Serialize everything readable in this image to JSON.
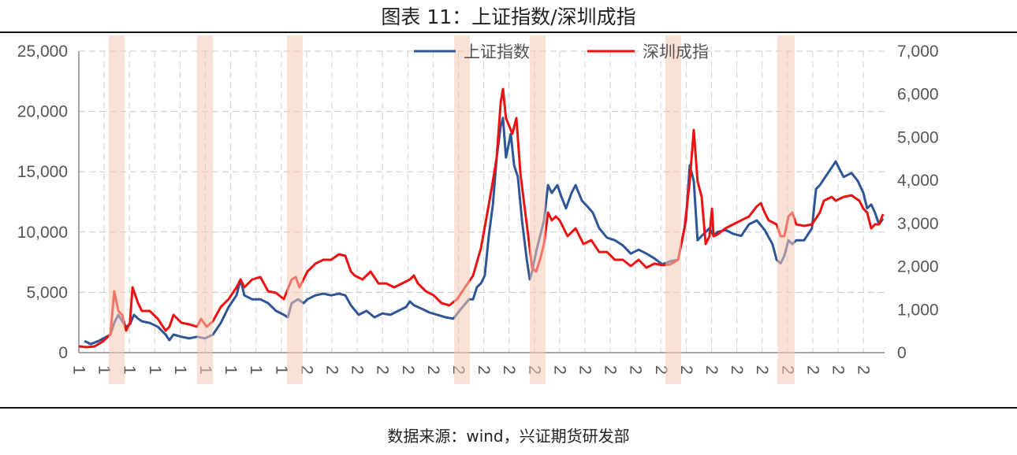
{
  "title": "图表 11：上证指数/深圳成指",
  "source": "数据来源：wind，兴证期货研发部",
  "chart_data": {
    "type": "line",
    "title": "图表 11：上证指数/深圳成指",
    "x_tick_labels": [
      "1",
      "1",
      "1",
      "1",
      "1",
      "1",
      "1",
      "1",
      "1",
      "2",
      "2",
      "2",
      "2",
      "2",
      "2",
      "2",
      "2",
      "2",
      "2",
      "2",
      "2",
      "2",
      "2",
      "2",
      "2",
      "2",
      "2",
      "2",
      "2",
      "2",
      "2",
      "2"
    ],
    "y_left": {
      "ticks": [
        "0",
        "5,000",
        "10,000",
        "15,000",
        "20,000",
        "25,000"
      ],
      "lim": [
        0,
        25000
      ]
    },
    "y_right": {
      "ticks": [
        "0",
        "1,000",
        "2,000",
        "3,000",
        "4,000",
        "5,000",
        "6,000",
        "7,000"
      ],
      "lim": [
        0,
        7000
      ]
    },
    "grid": "dashed",
    "legend": "top-center",
    "shaded_periods": [
      [
        1.18,
        1.81
      ],
      [
        4.67,
        5.3
      ],
      [
        8.22,
        8.85
      ],
      [
        14.83,
        15.45
      ],
      [
        17.82,
        18.44
      ],
      [
        23.18,
        23.8
      ],
      [
        27.6,
        28.29
      ]
    ],
    "shade_color": "#f6c9b3",
    "series": [
      {
        "name": "上证指数",
        "axis": "right",
        "color": "#2f5597",
        "points": [
          [
            0.22,
            270
          ],
          [
            0.47,
            200
          ],
          [
            0.78,
            270
          ],
          [
            1.09,
            370
          ],
          [
            1.25,
            420
          ],
          [
            1.4,
            690
          ],
          [
            1.56,
            880
          ],
          [
            1.71,
            730
          ],
          [
            1.87,
            600
          ],
          [
            2.02,
            660
          ],
          [
            2.18,
            880
          ],
          [
            2.34,
            790
          ],
          [
            2.49,
            730
          ],
          [
            2.8,
            690
          ],
          [
            3.12,
            600
          ],
          [
            3.43,
            420
          ],
          [
            3.58,
            290
          ],
          [
            3.74,
            420
          ],
          [
            4.05,
            370
          ],
          [
            4.36,
            330
          ],
          [
            4.67,
            370
          ],
          [
            4.98,
            330
          ],
          [
            5.3,
            420
          ],
          [
            5.61,
            690
          ],
          [
            5.92,
            1060
          ],
          [
            6.23,
            1330
          ],
          [
            6.39,
            1700
          ],
          [
            6.54,
            1330
          ],
          [
            6.85,
            1240
          ],
          [
            7.17,
            1240
          ],
          [
            7.48,
            1150
          ],
          [
            7.79,
            970
          ],
          [
            8.1,
            880
          ],
          [
            8.26,
            820
          ],
          [
            8.41,
            1150
          ],
          [
            8.66,
            1240
          ],
          [
            8.88,
            1150
          ],
          [
            9.03,
            1240
          ],
          [
            9.35,
            1330
          ],
          [
            9.66,
            1370
          ],
          [
            9.97,
            1330
          ],
          [
            10.28,
            1370
          ],
          [
            10.53,
            1330
          ],
          [
            10.75,
            1100
          ],
          [
            11.06,
            880
          ],
          [
            11.37,
            970
          ],
          [
            11.68,
            820
          ],
          [
            11.99,
            910
          ],
          [
            12.31,
            880
          ],
          [
            12.62,
            970
          ],
          [
            12.93,
            1060
          ],
          [
            13.08,
            1190
          ],
          [
            13.24,
            1100
          ],
          [
            13.55,
            1020
          ],
          [
            13.86,
            930
          ],
          [
            14.17,
            880
          ],
          [
            14.49,
            820
          ],
          [
            14.8,
            790
          ],
          [
            15.11,
            1020
          ],
          [
            15.42,
            1240
          ],
          [
            15.58,
            1240
          ],
          [
            15.73,
            1520
          ],
          [
            15.89,
            1610
          ],
          [
            16.04,
            1790
          ],
          [
            16.2,
            2710
          ],
          [
            16.36,
            3440
          ],
          [
            16.51,
            4530
          ],
          [
            16.67,
            5260
          ],
          [
            16.76,
            5450
          ],
          [
            16.88,
            4530
          ],
          [
            17.07,
            5080
          ],
          [
            17.2,
            4350
          ],
          [
            17.35,
            4080
          ],
          [
            17.51,
            3070
          ],
          [
            17.7,
            2160
          ],
          [
            17.82,
            1700
          ],
          [
            17.91,
            1880
          ],
          [
            18.07,
            2340
          ],
          [
            18.38,
            3070
          ],
          [
            18.54,
            3890
          ],
          [
            18.69,
            3710
          ],
          [
            18.91,
            3890
          ],
          [
            19.07,
            3620
          ],
          [
            19.25,
            3350
          ],
          [
            19.47,
            3710
          ],
          [
            19.63,
            3890
          ],
          [
            19.88,
            3530
          ],
          [
            20.09,
            3400
          ],
          [
            20.31,
            3250
          ],
          [
            20.56,
            2890
          ],
          [
            20.87,
            2670
          ],
          [
            21.18,
            2610
          ],
          [
            21.5,
            2490
          ],
          [
            21.81,
            2300
          ],
          [
            22.12,
            2390
          ],
          [
            22.43,
            2300
          ],
          [
            22.74,
            2190
          ],
          [
            23.05,
            2050
          ],
          [
            23.36,
            2120
          ],
          [
            23.68,
            2160
          ],
          [
            23.99,
            3070
          ],
          [
            24.14,
            4350
          ],
          [
            24.3,
            3990
          ],
          [
            24.45,
            2610
          ],
          [
            24.61,
            2710
          ],
          [
            24.92,
            2890
          ],
          [
            25.08,
            2710
          ],
          [
            25.23,
            2800
          ],
          [
            25.55,
            2850
          ],
          [
            25.86,
            2760
          ],
          [
            26.17,
            2710
          ],
          [
            26.48,
            2980
          ],
          [
            26.79,
            3070
          ],
          [
            27.1,
            2850
          ],
          [
            27.41,
            2520
          ],
          [
            27.57,
            2160
          ],
          [
            27.73,
            2070
          ],
          [
            27.88,
            2250
          ],
          [
            28.04,
            2610
          ],
          [
            28.19,
            2520
          ],
          [
            28.35,
            2610
          ],
          [
            28.66,
            2610
          ],
          [
            28.97,
            2890
          ],
          [
            29.13,
            3800
          ],
          [
            29.28,
            3890
          ],
          [
            29.6,
            4170
          ],
          [
            29.91,
            4440
          ],
          [
            30.06,
            4260
          ],
          [
            30.22,
            4080
          ],
          [
            30.53,
            4170
          ],
          [
            30.78,
            3990
          ],
          [
            31.0,
            3710
          ],
          [
            31.15,
            3350
          ],
          [
            31.31,
            3440
          ],
          [
            31.46,
            3250
          ],
          [
            31.62,
            2980
          ],
          [
            31.78,
            3110
          ]
        ]
      },
      {
        "name": "深圳成指",
        "axis": "left",
        "color": "#ee1111",
        "points": [
          [
            0.0,
            520
          ],
          [
            0.31,
            460
          ],
          [
            0.62,
            520
          ],
          [
            0.93,
            910
          ],
          [
            1.25,
            1500
          ],
          [
            1.4,
            5090
          ],
          [
            1.56,
            3460
          ],
          [
            1.71,
            3130
          ],
          [
            1.87,
            1830
          ],
          [
            2.02,
            2480
          ],
          [
            2.12,
            5420
          ],
          [
            2.34,
            4110
          ],
          [
            2.49,
            3460
          ],
          [
            2.8,
            3460
          ],
          [
            3.12,
            2810
          ],
          [
            3.43,
            1830
          ],
          [
            3.58,
            2150
          ],
          [
            3.74,
            3130
          ],
          [
            4.05,
            2480
          ],
          [
            4.36,
            2350
          ],
          [
            4.67,
            2150
          ],
          [
            4.83,
            2810
          ],
          [
            5.05,
            2150
          ],
          [
            5.3,
            2610
          ],
          [
            5.61,
            3790
          ],
          [
            5.92,
            4440
          ],
          [
            6.23,
            5420
          ],
          [
            6.39,
            6070
          ],
          [
            6.54,
            5420
          ],
          [
            6.85,
            6070
          ],
          [
            7.17,
            6270
          ],
          [
            7.48,
            5090
          ],
          [
            7.79,
            4960
          ],
          [
            8.1,
            4440
          ],
          [
            8.41,
            6070
          ],
          [
            8.57,
            6270
          ],
          [
            8.72,
            5420
          ],
          [
            9.03,
            6720
          ],
          [
            9.35,
            7380
          ],
          [
            9.66,
            7700
          ],
          [
            9.97,
            7700
          ],
          [
            10.28,
            8160
          ],
          [
            10.53,
            8030
          ],
          [
            10.75,
            6720
          ],
          [
            10.9,
            6400
          ],
          [
            11.21,
            6070
          ],
          [
            11.53,
            6720
          ],
          [
            11.84,
            5740
          ],
          [
            12.15,
            5740
          ],
          [
            12.46,
            5420
          ],
          [
            12.77,
            5740
          ],
          [
            13.08,
            6070
          ],
          [
            13.24,
            6400
          ],
          [
            13.4,
            5740
          ],
          [
            13.71,
            5090
          ],
          [
            14.02,
            4760
          ],
          [
            14.33,
            4110
          ],
          [
            14.64,
            3920
          ],
          [
            14.95,
            4440
          ],
          [
            15.26,
            5420
          ],
          [
            15.58,
            6400
          ],
          [
            15.89,
            8680
          ],
          [
            16.2,
            12270
          ],
          [
            16.36,
            14230
          ],
          [
            16.51,
            16190
          ],
          [
            16.67,
            20760
          ],
          [
            16.76,
            21870
          ],
          [
            16.88,
            19450
          ],
          [
            17.13,
            18150
          ],
          [
            17.29,
            19450
          ],
          [
            17.45,
            14880
          ],
          [
            17.6,
            12270
          ],
          [
            17.76,
            9660
          ],
          [
            17.91,
            7050
          ],
          [
            18.07,
            6720
          ],
          [
            18.22,
            7700
          ],
          [
            18.38,
            9010
          ],
          [
            18.54,
            11620
          ],
          [
            18.69,
            10970
          ],
          [
            18.85,
            11290
          ],
          [
            19.0,
            10970
          ],
          [
            19.31,
            9660
          ],
          [
            19.63,
            10310
          ],
          [
            19.94,
            9010
          ],
          [
            20.25,
            9330
          ],
          [
            20.56,
            8350
          ],
          [
            20.87,
            8350
          ],
          [
            21.18,
            7700
          ],
          [
            21.5,
            7700
          ],
          [
            21.81,
            7180
          ],
          [
            22.12,
            7700
          ],
          [
            22.43,
            7050
          ],
          [
            22.74,
            7380
          ],
          [
            23.05,
            7250
          ],
          [
            23.36,
            7310
          ],
          [
            23.68,
            7700
          ],
          [
            23.93,
            10310
          ],
          [
            24.14,
            14230
          ],
          [
            24.3,
            18470
          ],
          [
            24.45,
            14230
          ],
          [
            24.61,
            12920
          ],
          [
            24.77,
            9010
          ],
          [
            24.92,
            9660
          ],
          [
            25.02,
            11940
          ],
          [
            25.08,
            9660
          ],
          [
            25.23,
            9790
          ],
          [
            25.55,
            10310
          ],
          [
            25.86,
            10640
          ],
          [
            26.17,
            10970
          ],
          [
            26.48,
            11290
          ],
          [
            26.79,
            12140
          ],
          [
            26.95,
            12400
          ],
          [
            27.1,
            11620
          ],
          [
            27.26,
            10970
          ],
          [
            27.57,
            10640
          ],
          [
            27.73,
            9660
          ],
          [
            27.88,
            9660
          ],
          [
            28.04,
            11290
          ],
          [
            28.19,
            11620
          ],
          [
            28.35,
            10640
          ],
          [
            28.66,
            10510
          ],
          [
            28.97,
            10640
          ],
          [
            29.28,
            11620
          ],
          [
            29.44,
            12600
          ],
          [
            29.75,
            12920
          ],
          [
            29.91,
            12600
          ],
          [
            30.22,
            12920
          ],
          [
            30.53,
            13050
          ],
          [
            30.84,
            12600
          ],
          [
            31.0,
            11940
          ],
          [
            31.15,
            11620
          ],
          [
            31.31,
            10310
          ],
          [
            31.46,
            10640
          ],
          [
            31.62,
            10640
          ],
          [
            31.78,
            11490
          ]
        ]
      }
    ]
  }
}
